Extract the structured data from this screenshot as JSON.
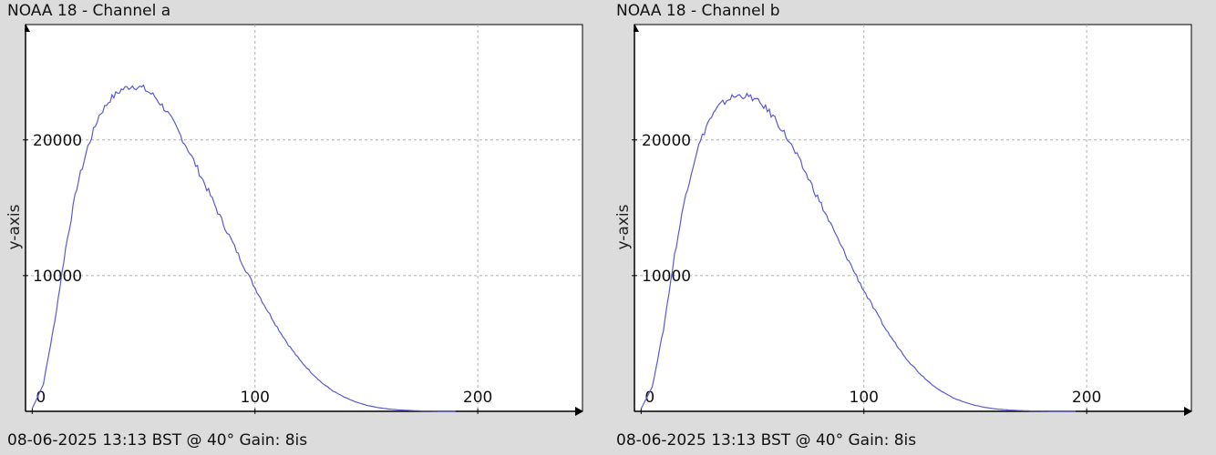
{
  "chart_data": [
    {
      "type": "line",
      "title": "NOAA 18 - Channel a",
      "footer": "08-06-2025 13:13 BST @ 40° Gain: 8is",
      "xlabel": "",
      "ylabel": "y-axis",
      "xlim": [
        -3,
        247
      ],
      "ylim": [
        0,
        28500
      ],
      "xticks": [
        0,
        100,
        200
      ],
      "yticks": [
        10000,
        20000
      ],
      "grid": true,
      "line_color": "#5a5ad2",
      "series": [
        {
          "x": [
            0,
            5,
            10,
            15,
            20,
            25,
            30,
            35,
            40,
            45,
            50,
            55,
            60,
            65,
            70,
            75,
            80,
            85,
            90,
            95,
            100,
            105,
            110,
            115,
            120,
            125,
            130,
            135,
            140,
            145,
            150,
            155,
            160,
            165,
            170,
            175,
            180,
            185,
            190
          ],
          "y": [
            200,
            2000,
            6500,
            12000,
            16500,
            19500,
            21800,
            23000,
            23700,
            24000,
            23800,
            23200,
            22200,
            20800,
            19300,
            17600,
            15900,
            14100,
            12400,
            10700,
            9100,
            7600,
            6200,
            4900,
            3800,
            2900,
            2100,
            1500,
            1050,
            700,
            450,
            280,
            170,
            100,
            60,
            30,
            15,
            5,
            0
          ]
        }
      ]
    },
    {
      "type": "line",
      "title": "NOAA 18 - Channel b",
      "footer": "08-06-2025 13:13 BST @ 40° Gain: 8is",
      "xlabel": "",
      "ylabel": "y-axis",
      "xlim": [
        -3,
        247
      ],
      "ylim": [
        0,
        28500
      ],
      "xticks": [
        0,
        100,
        200
      ],
      "yticks": [
        10000,
        20000
      ],
      "grid": true,
      "line_color": "#5a5ad2",
      "series": [
        {
          "x": [
            0,
            5,
            10,
            15,
            20,
            25,
            30,
            35,
            40,
            45,
            50,
            55,
            60,
            65,
            70,
            75,
            80,
            85,
            90,
            95,
            100,
            105,
            110,
            115,
            120,
            125,
            130,
            135,
            140,
            145,
            150,
            155,
            160,
            165,
            170,
            175,
            180,
            185,
            190,
            195
          ],
          "y": [
            200,
            1800,
            6000,
            11500,
            16000,
            19200,
            21300,
            22500,
            23100,
            23300,
            23100,
            22500,
            21600,
            20300,
            18800,
            17200,
            15500,
            13800,
            12100,
            10500,
            8900,
            7400,
            6000,
            4800,
            3700,
            2800,
            2050,
            1450,
            1000,
            680,
            440,
            270,
            160,
            95,
            55,
            30,
            15,
            6,
            2,
            0
          ]
        }
      ]
    }
  ]
}
